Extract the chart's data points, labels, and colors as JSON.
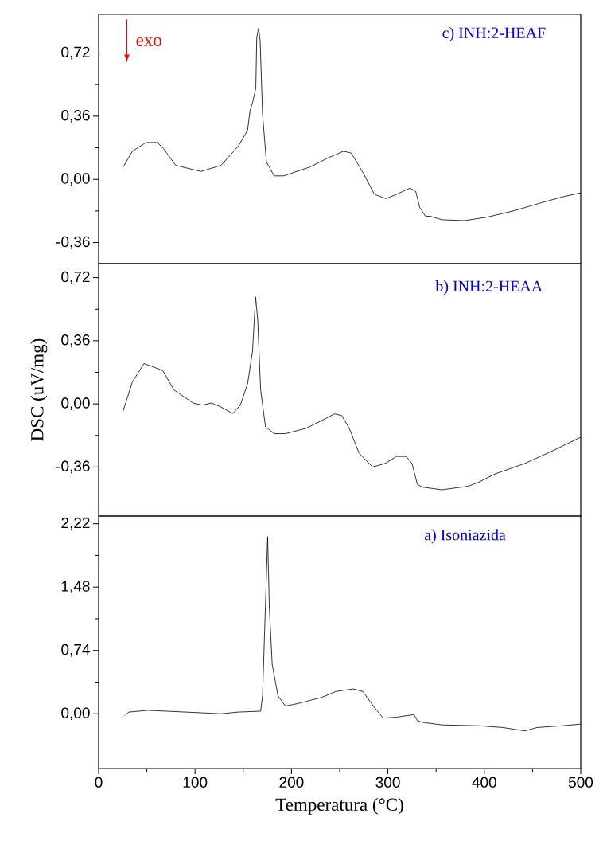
{
  "chart_data": [
    {
      "type": "line",
      "title": "c) INH:2-HEAF",
      "annotations": [
        "exo"
      ],
      "xlim": [
        0,
        500
      ],
      "ylim": [
        -0.48,
        0.94
      ],
      "tick_labels": "y",
      "yticks": [
        {
          "value": -0.36,
          "label": "-0,36"
        },
        {
          "value": 0,
          "label": "0,00"
        },
        {
          "value": 0.36,
          "label": "0,36"
        },
        {
          "value": 0.72,
          "label": "0,72"
        }
      ],
      "series": [
        {
          "color": "#000000",
          "x": [
            25.4,
            35,
            49,
            61,
            68,
            80,
            106,
            127,
            145,
            154.5,
            157,
            160,
            163,
            164,
            165.9,
            167.5,
            170,
            174,
            182,
            192,
            219,
            239,
            254,
            262,
            274,
            286,
            298,
            309,
            323,
            329,
            333,
            339,
            344,
            356,
            379.5,
            403,
            430,
            458,
            481,
            500
          ],
          "values": [
            0.07,
            0.16,
            0.21,
            0.21,
            0.17,
            0.08,
            0.045,
            0.08,
            0.19,
            0.28,
            0.39,
            0.445,
            0.52,
            0.81,
            0.86,
            0.79,
            0.37,
            0.1,
            0.02,
            0.02,
            0.07,
            0.125,
            0.16,
            0.15,
            0.04,
            -0.085,
            -0.11,
            -0.085,
            -0.05,
            -0.07,
            -0.16,
            -0.21,
            -0.21,
            -0.23,
            -0.235,
            -0.215,
            -0.18,
            -0.135,
            -0.1,
            -0.077
          ]
        }
      ]
    },
    {
      "type": "line",
      "title": "b) INH:2-HEAA",
      "ylabel": "DSC (uV/mg)",
      "xlim": [
        0,
        500
      ],
      "ylim": [
        -0.64,
        0.8
      ],
      "tick_labels": "y",
      "yticks": [
        {
          "value": -0.36,
          "label": "-0,36"
        },
        {
          "value": 0,
          "label": "0,00"
        },
        {
          "value": 0.36,
          "label": "0,36"
        },
        {
          "value": 0.72,
          "label": "0,72"
        }
      ],
      "series": [
        {
          "color": "#000000",
          "x": [
            25.4,
            35,
            47,
            57,
            66.5,
            78,
            98,
            107.6,
            117,
            127,
            139,
            147,
            154.5,
            159.6,
            162.8,
            165,
            168,
            173,
            182,
            193.7,
            215,
            235,
            244.5,
            252,
            260,
            270,
            284,
            297,
            309,
            319,
            325,
            330.6,
            336,
            356,
            383,
            393,
            411,
            442,
            470,
            500
          ],
          "values": [
            -0.04,
            0.125,
            0.23,
            0.21,
            0.19,
            0.08,
            0.005,
            -0.007,
            0.005,
            -0.018,
            -0.055,
            -0.007,
            0.115,
            0.3,
            0.61,
            0.48,
            0.08,
            -0.13,
            -0.17,
            -0.17,
            -0.14,
            -0.085,
            -0.057,
            -0.066,
            -0.14,
            -0.28,
            -0.36,
            -0.34,
            -0.3,
            -0.3,
            -0.34,
            -0.46,
            -0.475,
            -0.49,
            -0.47,
            -0.45,
            -0.4,
            -0.34,
            -0.27,
            -0.19
          ]
        }
      ]
    },
    {
      "type": "line",
      "title": "a) Isoniazida",
      "xlabel": "Temperatura (°C)",
      "xlim": [
        0,
        500
      ],
      "ylim": [
        -0.64,
        2.31
      ],
      "xticks": [
        0,
        100,
        200,
        300,
        400,
        500
      ],
      "yticks": [
        {
          "value": 0,
          "label": "0,00"
        },
        {
          "value": 0.74,
          "label": "0,74"
        },
        {
          "value": 1.48,
          "label": "1,48"
        },
        {
          "value": 2.22,
          "label": "2,22"
        }
      ],
      "series": [
        {
          "color": "#000000",
          "x": [
            27.4,
            31.3,
            51,
            90,
            127,
            145,
            168,
            170,
            173,
            175.3,
            177,
            180,
            186,
            193.7,
            207,
            231,
            246,
            264,
            274,
            285.6,
            295,
            309,
            327,
            330.6,
            336,
            356,
            395,
            419,
            442,
            454.6,
            481,
            500
          ],
          "values": [
            -0.02,
            0.02,
            0.04,
            0.02,
            0.0,
            0.02,
            0.03,
            0.21,
            1.26,
            2.07,
            1.26,
            0.58,
            0.21,
            0.09,
            0.12,
            0.19,
            0.26,
            0.29,
            0.26,
            0.08,
            -0.05,
            -0.04,
            -0.01,
            -0.08,
            -0.1,
            -0.13,
            -0.14,
            -0.16,
            -0.2,
            -0.16,
            -0.14,
            -0.12
          ]
        }
      ]
    }
  ]
}
